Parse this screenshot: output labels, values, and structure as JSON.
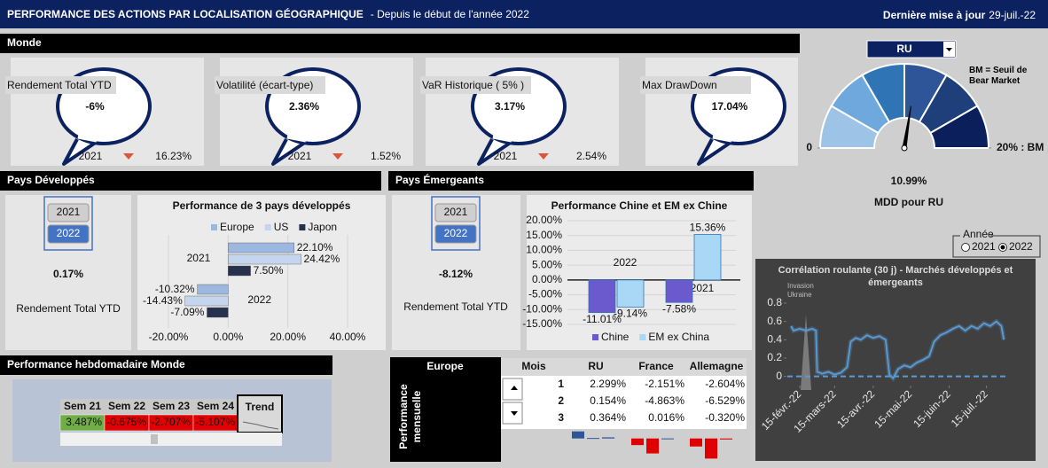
{
  "header": {
    "title": "PERFORMANCE DES ACTIONS PAR LOCALISATION GÉOGRAPHIQUE",
    "subtitle": "- Depuis le début de l'année 2022",
    "update_label": "Dernière mise à jour",
    "update_date": "29-juil.-22"
  },
  "monde": {
    "title": "Monde",
    "kpis": [
      {
        "label": "Rendement Total YTD",
        "value": "-6%",
        "year": "2021",
        "previous": "16.23%"
      },
      {
        "label": "Volatilité (écart-type)",
        "value": "2.36%",
        "year": "2021",
        "previous": "1.52%"
      },
      {
        "label": "VaR Historique ( 5% )",
        "value": "3.17%",
        "year": "2021",
        "previous": "2.54%"
      },
      {
        "label": "Max DrawDown",
        "value": "17.04%"
      }
    ]
  },
  "gauge_panel": {
    "selector": "RU",
    "note": "BM = Seuil de Bear Market",
    "caption": "MDD pour RU"
  },
  "developed": {
    "title": "Pays Développés",
    "buttons": [
      "2021",
      "2022"
    ],
    "selected": "2022",
    "value": "0.17%",
    "caption": "Rendement Total YTD"
  },
  "emerging": {
    "title": "Pays Émergeants",
    "buttons": [
      "2021",
      "2022"
    ],
    "selected": "2022",
    "value": "-8.12%",
    "caption": "Rendement Total YTD"
  },
  "year_selector": {
    "legend": "Année",
    "options": [
      "2021",
      "2022"
    ],
    "selected": "2022"
  },
  "weekly": {
    "title": "Performance hebdomadaire Monde",
    "headers": [
      "Sem 21",
      "Sem 22",
      "Sem 23",
      "Sem 24"
    ],
    "values": [
      "3.487%",
      "-0.675%",
      "-2.707%",
      "-5.107%"
    ],
    "trend_header": "Trend",
    "positive_color": "#70ad47",
    "negative_color": "#e00000"
  },
  "monthly": {
    "region": "Europe",
    "side_label": "Performance mensuelle",
    "month_header": "Mois",
    "months": [
      1,
      2,
      3
    ]
  },
  "chart_data": [
    {
      "type": "hbar",
      "title": "Performance de 3 pays développés",
      "categories": [
        "2021",
        "2022"
      ],
      "series": [
        {
          "name": "Europe",
          "color": "#9db8e0",
          "values": [
            22.1,
            -10.32
          ],
          "value_labels": [
            "22.10%",
            "-10.32%"
          ]
        },
        {
          "name": "US",
          "color": "#c5d5ee",
          "values": [
            24.42,
            -14.43
          ],
          "value_labels": [
            "24.42%",
            "-14.43%"
          ]
        },
        {
          "name": "Japon",
          "color": "#26324d",
          "values": [
            7.5,
            -7.09
          ],
          "value_labels": [
            "7.50%",
            "-7.09%"
          ]
        }
      ],
      "xlim": [
        -20,
        40
      ],
      "xticks": [
        {
          "value": -20,
          "label": "-20.00%"
        },
        {
          "value": 0,
          "label": "0.00%"
        },
        {
          "value": 20,
          "label": "20.00%"
        },
        {
          "value": 40,
          "label": "40.00%"
        }
      ],
      "grid": true
    },
    {
      "type": "bar",
      "title": "Performance Chine et EM ex Chine",
      "categories": [
        "2022",
        "2021"
      ],
      "series": [
        {
          "name": "Chine",
          "color": "#6a5acd",
          "values": [
            -11.01,
            -7.58
          ],
          "value_labels": [
            "-11.01%",
            "-7.58%"
          ]
        },
        {
          "name": "EM ex China",
          "color": "#a8d8f5",
          "values": [
            -9.14,
            15.36
          ],
          "value_labels": [
            "-9.14%",
            "15.36%"
          ]
        }
      ],
      "ylim": [
        -15,
        20
      ],
      "yticks": [
        {
          "value": -15,
          "label": "-15.00%"
        },
        {
          "value": -10,
          "label": "-10.00%"
        },
        {
          "value": -5,
          "label": "-5.00%"
        },
        {
          "value": 0,
          "label": "0.00%"
        },
        {
          "value": 5,
          "label": "5.00%"
        },
        {
          "value": 10,
          "label": "10.00%"
        },
        {
          "value": 15,
          "label": "15.00%"
        },
        {
          "value": 20,
          "label": "20.00%"
        }
      ],
      "grid": true
    },
    {
      "type": "line",
      "title": "Corrélation roulante (30 j) - Marchés développés et émergeants",
      "annotation": "Invasion Ukraine",
      "x": [
        "2022-02-08",
        "2022-02-10",
        "2022-02-15",
        "2022-02-20",
        "2022-02-25",
        "2022-02-28",
        "2022-03-01",
        "2022-03-05",
        "2022-03-10",
        "2022-03-15",
        "2022-03-20",
        "2022-03-25",
        "2022-03-28",
        "2022-04-01",
        "2022-04-05",
        "2022-04-10",
        "2022-04-15",
        "2022-04-20",
        "2022-04-25",
        "2022-04-28",
        "2022-05-01",
        "2022-05-05",
        "2022-05-10",
        "2022-05-15",
        "2022-05-20",
        "2022-05-25",
        "2022-05-30",
        "2022-06-03",
        "2022-06-08",
        "2022-06-13",
        "2022-06-18",
        "2022-06-23",
        "2022-06-28",
        "2022-07-03",
        "2022-07-08",
        "2022-07-13",
        "2022-07-18",
        "2022-07-23",
        "2022-07-27",
        "2022-07-29"
      ],
      "series": [
        {
          "color": "#5b9bd5",
          "values": [
            0.55,
            0.5,
            0.52,
            0.5,
            0.52,
            0.5,
            0.05,
            0.03,
            0.05,
            0.02,
            0.04,
            0.1,
            0.38,
            0.42,
            0.4,
            0.45,
            0.42,
            0.44,
            0.4,
            0.02,
            -0.02,
            0.08,
            0.12,
            0.1,
            0.15,
            0.18,
            0.22,
            0.38,
            0.45,
            0.48,
            0.52,
            0.55,
            0.5,
            0.55,
            0.52,
            0.58,
            0.55,
            0.6,
            0.55,
            0.4
          ]
        }
      ],
      "xlim": [
        "2022-02-05",
        "2022-07-31"
      ],
      "xticks": [
        {
          "value": "2022-02-15",
          "label": "15-févr.-22"
        },
        {
          "value": "2022-03-15",
          "label": "15-mars-22"
        },
        {
          "value": "2022-04-15",
          "label": "15-avr.-22"
        },
        {
          "value": "2022-05-15",
          "label": "15-mai-22"
        },
        {
          "value": "2022-06-15",
          "label": "15-juin-22"
        },
        {
          "value": "2022-07-15",
          "label": "15-juil.-22"
        }
      ],
      "ylim": [
        -0.1,
        0.8
      ],
      "yticks": [
        0,
        0.2,
        0.4,
        0.6,
        0.8
      ],
      "zero_line": true
    },
    {
      "type": "gauge",
      "value": 10.99,
      "value_label": "10.99%",
      "ylim": [
        0,
        20
      ],
      "yticks": [
        0,
        {
          "value": 20,
          "label": "20% : BM"
        }
      ],
      "colors": [
        "#9dc3e6",
        "#6fa8dc",
        "#2f75b5",
        "#2e5597",
        "#1f3f7a",
        "#0b1f5c"
      ]
    },
    {
      "type": "minibar",
      "series": [
        {
          "name": "RU",
          "values": [
            2.299,
            0.154,
            0.364
          ],
          "value_labels": [
            "2.299%",
            "0.154%",
            "0.364%"
          ]
        },
        {
          "name": "France",
          "values": [
            -2.151,
            -4.863,
            0.016
          ],
          "value_labels": [
            "-2.151%",
            "-4.863%",
            "0.016%"
          ]
        },
        {
          "name": "Allemagne",
          "values": [
            -2.604,
            -6.529,
            -0.32
          ],
          "value_labels": [
            "-2.604%",
            "-6.529%",
            "-0.320%"
          ]
        }
      ],
      "ylim": [
        -7,
        2.5
      ],
      "positive_color": "#2e5597",
      "negative_color": "#e00000"
    }
  ]
}
